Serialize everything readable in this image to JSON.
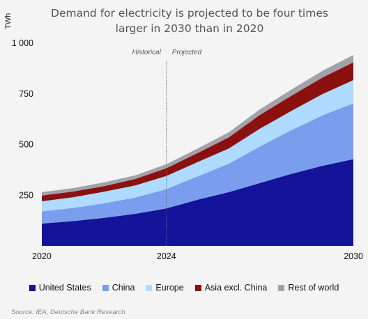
{
  "chart_data": {
    "type": "area",
    "stacked": true,
    "title_lines": [
      "Demand for electricity is projected to be four times",
      "larger in 2030 than in 2020"
    ],
    "ylabel": "TWh",
    "x": [
      2020,
      2021,
      2022,
      2023,
      2024,
      2025,
      2026,
      2027,
      2028,
      2029,
      2030
    ],
    "xticks": [
      2020,
      2024,
      2030
    ],
    "ylim": [
      0,
      1000
    ],
    "yticks": [
      250,
      500,
      750,
      1000
    ],
    "ytick_labels": [
      "250",
      "500",
      "750",
      "1 000"
    ],
    "grid": false,
    "divider": {
      "x": 2024,
      "left_label": "Historical",
      "right_label": "Projected"
    },
    "series": [
      {
        "name": "United States",
        "color": "#14149a",
        "values": [
          110,
          122,
          138,
          158,
          185,
          228,
          265,
          310,
          355,
          395,
          428
        ]
      },
      {
        "name": "China",
        "color": "#7b9ded",
        "values": [
          60,
          65,
          72,
          80,
          95,
          115,
          140,
          180,
          215,
          248,
          275
        ]
      },
      {
        "name": "Europe",
        "color": "#aedbff",
        "values": [
          50,
          53,
          57,
          60,
          65,
          70,
          75,
          88,
          95,
          105,
          115
        ]
      },
      {
        "name": "Asia excl. China",
        "color": "#8b1111",
        "values": [
          28,
          28,
          28,
          32,
          38,
          45,
          55,
          68,
          75,
          82,
          88
        ]
      },
      {
        "name": "Rest of world",
        "color": "#a2a2aa",
        "values": [
          17,
          17,
          18,
          18,
          20,
          22,
          25,
          28,
          30,
          33,
          36
        ]
      }
    ],
    "legend_position": "bottom"
  },
  "source": "Source: IEA, Deutsche Bank Research"
}
